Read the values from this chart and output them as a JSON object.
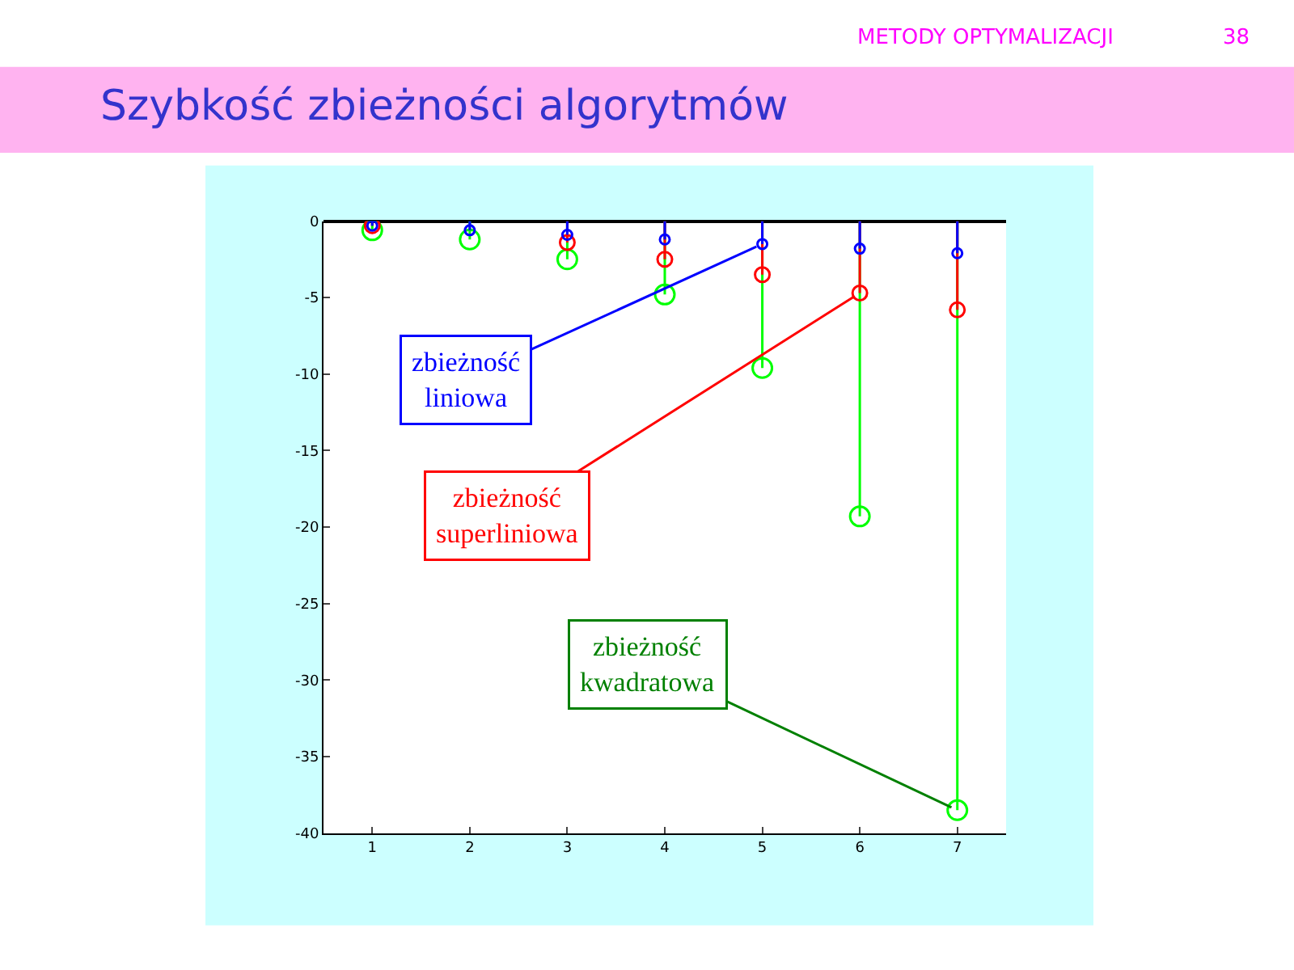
{
  "chart_data": {
    "type": "lollipop",
    "title": "Szybkość zbieżności algorytmów",
    "x": [
      1,
      2,
      3,
      4,
      5,
      6,
      7
    ],
    "series": [
      {
        "color": "#0000ff",
        "values": [
          -0.3,
          -0.6,
          -0.9,
          -1.2,
          -1.5,
          -1.8,
          -2.1
        ]
      },
      {
        "color": "#ff0000",
        "values": [
          -0.3,
          null,
          -1.4,
          -2.5,
          -3.5,
          -4.7,
          -5.8
        ]
      },
      {
        "color": "#00ff00",
        "values": [
          -0.6,
          -1.2,
          -2.5,
          -4.8,
          -9.6,
          -19.3,
          -38.5
        ]
      }
    ],
    "xlim": [
      0.5,
      7.5
    ],
    "xticks": [
      1,
      2,
      3,
      4,
      5,
      6,
      7
    ],
    "ylim": [
      -40,
      0
    ],
    "yticks": [
      0,
      -5,
      -10,
      -15,
      -20,
      -25,
      -30,
      -35,
      -40
    ],
    "marker": "circle",
    "annotations": [
      {
        "text": "zbieżność\nliniowa",
        "x": 5,
        "y": -1.5
      },
      {
        "text": "zbieżność\nsuperliniowa",
        "x": 6,
        "y": -4.7
      },
      {
        "text": "zbieżność\nkwadratowa",
        "x": 7,
        "y": -38.5
      },
      "METODY OPTYMALIZACJI",
      "38"
    ]
  }
}
